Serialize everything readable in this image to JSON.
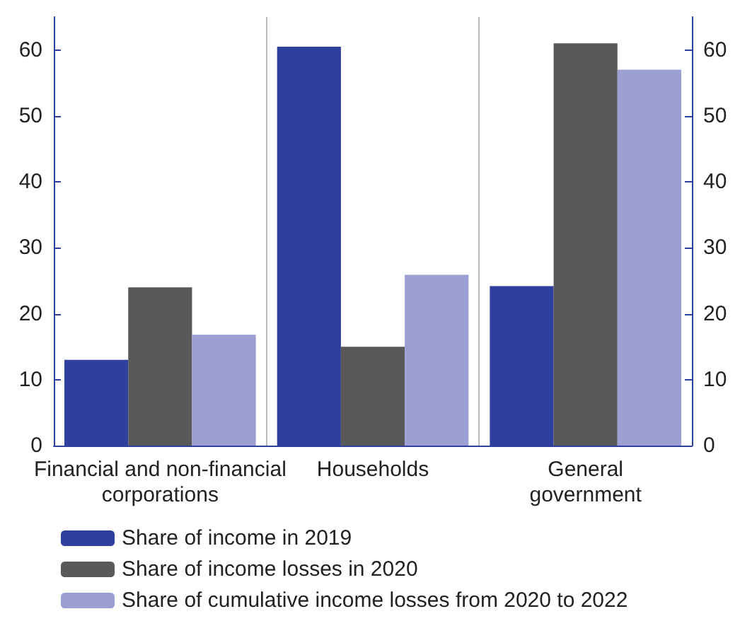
{
  "chart_data": {
    "type": "bar",
    "categories": [
      "Financial and non-financial\ncorporations",
      "Households",
      "General\ngovernment"
    ],
    "series": [
      {
        "name": "Share of income in 2019",
        "color": "#2e3f9e",
        "values": [
          13,
          60.5,
          24.2
        ]
      },
      {
        "name": "Share of income losses in 2020",
        "color": "#595959",
        "values": [
          24,
          15,
          61
        ]
      },
      {
        "name": "Share of cumulative income losses from 2020 to 2022",
        "color": "#9b9fd3",
        "values": [
          16.8,
          25.9,
          57
        ]
      }
    ],
    "ylim": [
      0,
      65
    ],
    "yticks": [
      0,
      10,
      20,
      30,
      40,
      50,
      60
    ],
    "y2lim": [
      0,
      65
    ],
    "y2ticks": [
      0,
      10,
      20,
      30,
      40,
      50,
      60
    ],
    "grid": "x",
    "legend": "bottom"
  }
}
